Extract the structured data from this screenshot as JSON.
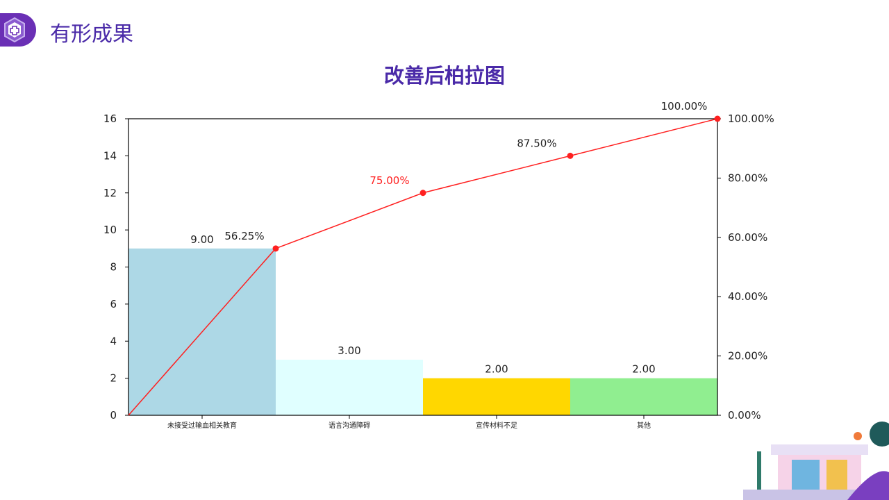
{
  "header": {
    "title": "有形成果",
    "icon": "hexagon-plus-icon"
  },
  "colors": {
    "accent": "#6a2fb5",
    "title": "#4a2aa8",
    "line": "#ff2020"
  },
  "chart_data": {
    "type": "bar",
    "title": "改善后柏拉图",
    "categories": [
      "未接受过输血相关教育",
      "语言沟通障碍",
      "宣传材料不足",
      "其他"
    ],
    "values": [
      9,
      3,
      2,
      2
    ],
    "value_labels": [
      "9.00",
      "3.00",
      "2.00",
      "2.00"
    ],
    "bar_colors": [
      "#add8e6",
      "#e0ffff",
      "#ffd700",
      "#90ee90"
    ],
    "cumulative_percent": [
      56.25,
      75.0,
      87.5,
      100.0
    ],
    "cumulative_labels": [
      "56.25%",
      "75.00%",
      "87.50%",
      "100.00%"
    ],
    "cumulative_label_colors": [
      "#222222",
      "#ff2020",
      "#222222",
      "#222222"
    ],
    "ylim": [
      0,
      16
    ],
    "yticks": [
      "0",
      "2",
      "4",
      "6",
      "8",
      "10",
      "12",
      "14",
      "16"
    ],
    "y2lim": [
      0,
      100
    ],
    "y2ticks": [
      "0.00%",
      "20.00%",
      "40.00%",
      "60.00%",
      "80.00%",
      "100.00%"
    ],
    "grid": false
  }
}
